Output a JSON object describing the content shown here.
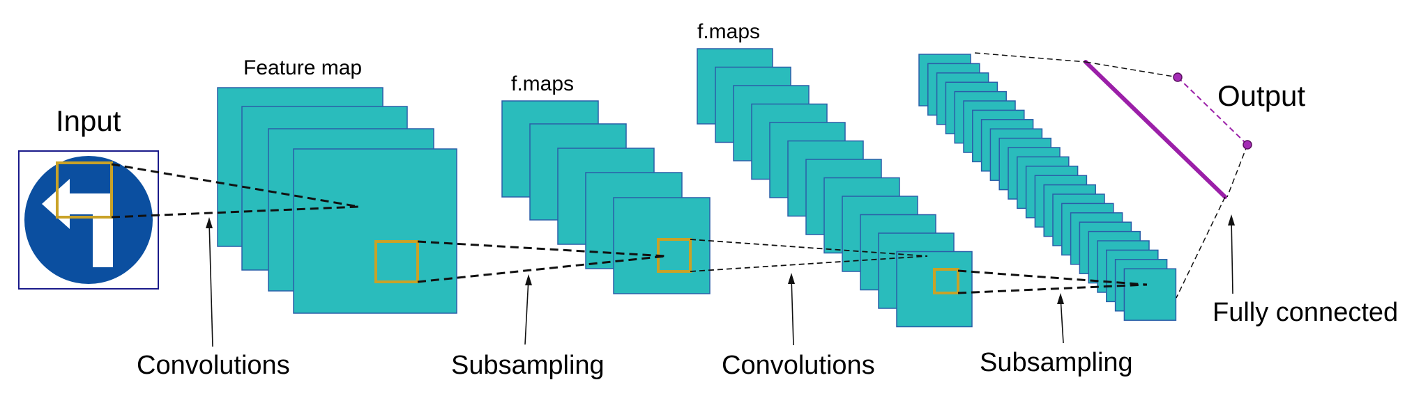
{
  "labels": {
    "input": "Input",
    "feature_map": "Feature map",
    "fmaps_1": "f.maps",
    "fmaps_2": "f.maps",
    "output": "Output",
    "convolutions_1": "Convolutions",
    "subsampling_1": "Subsampling",
    "convolutions_2": "Convolutions",
    "subsampling_2": "Subsampling",
    "fully_connected": "Fully connected"
  },
  "colors": {
    "map_fill": "#2abcbc",
    "map_stroke": "#2a5ea8",
    "input_border": "#1a1a8a",
    "sign_blue": "#0b4fa0",
    "sign_arrow": "#ffffff",
    "window": "#c9a227",
    "fc_purple": "#9b1fa8"
  },
  "icons": {
    "input_image": "left-turn-road-sign-icon"
  }
}
